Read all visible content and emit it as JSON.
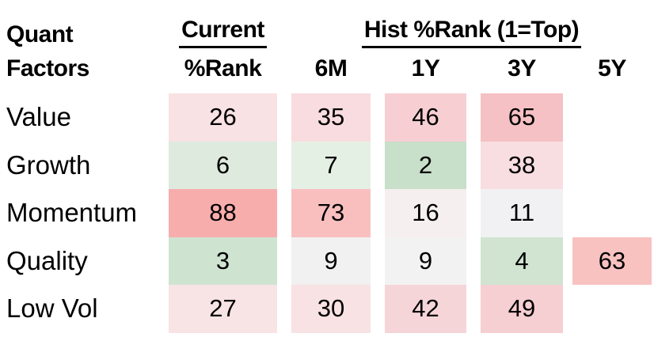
{
  "chart_data": {
    "type": "heatmap",
    "row_header_line1": "Quant",
    "row_header_line2": "Factors",
    "col_group_current": {
      "title": "Current",
      "sub": "%Rank"
    },
    "col_group_hist": {
      "title": "Hist %Rank (1=Top)",
      "subs": [
        "6M",
        "1Y",
        "3Y",
        "5Y"
      ]
    },
    "columns": [
      "Current %Rank",
      "6M",
      "1Y",
      "3Y",
      "5Y"
    ],
    "rows": [
      "Value",
      "Growth",
      "Momentum",
      "Quality",
      "Low Vol"
    ],
    "values": [
      [
        26,
        35,
        46,
        65,
        null
      ],
      [
        6,
        7,
        2,
        38,
        null
      ],
      [
        88,
        73,
        16,
        11,
        null
      ],
      [
        3,
        9,
        9,
        4,
        63
      ],
      [
        27,
        30,
        42,
        49,
        null
      ]
    ],
    "cell_colors": [
      [
        "#f9e2e4",
        "#f8dcdf",
        "#f7cfd3",
        "#f5c1c4",
        ""
      ],
      [
        "#deeade",
        "#e5f0e5",
        "#c8dfc9",
        "#f8dee1",
        ""
      ],
      [
        "#f8adad",
        "#f9bfbf",
        "#f5f0ef",
        "#f1f1f3",
        ""
      ],
      [
        "#cfe3d1",
        "#f2f1f1",
        "#f3f2f2",
        "#d0e4d1",
        "#f8c2c1"
      ],
      [
        "#f8e3e5",
        "#f8e2e4",
        "#f6d5d8",
        "#f6cfd2",
        ""
      ]
    ],
    "colormap": {
      "low_rank_green": "#c8dfc9",
      "mid_rank_white": "#f2f1f1",
      "high_rank_red": "#f8adad"
    },
    "layout": {
      "grid": "off",
      "legend": "none",
      "value_range_note": "1=Top"
    }
  }
}
